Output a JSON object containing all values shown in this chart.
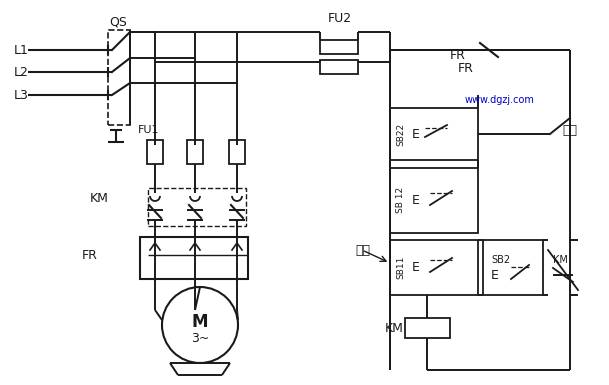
{
  "background_color": "#ffffff",
  "line_color": "#1a1a1a",
  "watermark_color": "#0000cc",
  "figsize": [
    6.09,
    3.85
  ],
  "dpi": 100,
  "xlim": [
    0,
    609
  ],
  "ylim": [
    0,
    385
  ]
}
